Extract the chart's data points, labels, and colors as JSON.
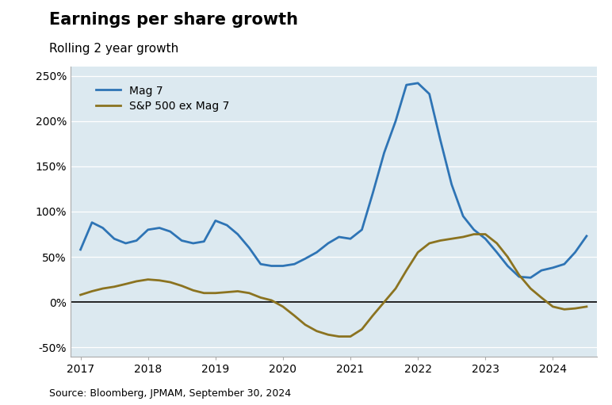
{
  "title": "Earnings per share growth",
  "subtitle": "Rolling 2 year growth",
  "source": "Source: Bloomberg, JPMAM, September 30, 2024",
  "plot_bg_color": "#dce9f0",
  "outer_bg_color": "#ffffff",
  "mag7_color": "#2e74b5",
  "sp500_color": "#8b7320",
  "mag7_label": "Mag 7",
  "sp500_label": "S&P 500 ex Mag 7",
  "ylim": [
    -60,
    260
  ],
  "yticks": [
    -50,
    0,
    50,
    100,
    150,
    200,
    250
  ],
  "mag7_x": [
    2017.0,
    2017.17,
    2017.33,
    2017.5,
    2017.67,
    2017.83,
    2018.0,
    2018.17,
    2018.33,
    2018.5,
    2018.67,
    2018.83,
    2019.0,
    2019.17,
    2019.33,
    2019.5,
    2019.67,
    2019.83,
    2020.0,
    2020.17,
    2020.33,
    2020.5,
    2020.67,
    2020.83,
    2021.0,
    2021.17,
    2021.33,
    2021.5,
    2021.67,
    2021.83,
    2022.0,
    2022.17,
    2022.33,
    2022.5,
    2022.67,
    2022.83,
    2023.0,
    2023.17,
    2023.33,
    2023.5,
    2023.67,
    2023.83,
    2024.0,
    2024.17,
    2024.33,
    2024.5
  ],
  "mag7_y": [
    58,
    88,
    82,
    70,
    65,
    68,
    80,
    82,
    78,
    68,
    65,
    67,
    90,
    85,
    75,
    60,
    42,
    40,
    40,
    42,
    48,
    55,
    65,
    72,
    70,
    80,
    120,
    165,
    200,
    240,
    242,
    230,
    180,
    130,
    95,
    80,
    70,
    55,
    40,
    28,
    27,
    35,
    38,
    42,
    55,
    73
  ],
  "sp500_x": [
    2017.0,
    2017.17,
    2017.33,
    2017.5,
    2017.67,
    2017.83,
    2018.0,
    2018.17,
    2018.33,
    2018.5,
    2018.67,
    2018.83,
    2019.0,
    2019.17,
    2019.33,
    2019.5,
    2019.67,
    2019.83,
    2020.0,
    2020.17,
    2020.33,
    2020.5,
    2020.67,
    2020.83,
    2021.0,
    2021.17,
    2021.33,
    2021.5,
    2021.67,
    2021.83,
    2022.0,
    2022.17,
    2022.33,
    2022.5,
    2022.67,
    2022.83,
    2023.0,
    2023.17,
    2023.33,
    2023.5,
    2023.67,
    2023.83,
    2024.0,
    2024.17,
    2024.33,
    2024.5
  ],
  "sp500_y": [
    8,
    12,
    15,
    17,
    20,
    23,
    25,
    24,
    22,
    18,
    13,
    10,
    10,
    11,
    12,
    10,
    5,
    2,
    -5,
    -15,
    -25,
    -32,
    -36,
    -38,
    -38,
    -30,
    -15,
    0,
    15,
    35,
    55,
    65,
    68,
    70,
    72,
    75,
    75,
    65,
    50,
    30,
    15,
    5,
    -5,
    -8,
    -7,
    -5
  ],
  "xticks": [
    2017,
    2018,
    2019,
    2020,
    2021,
    2022,
    2023,
    2024
  ],
  "xlim": [
    2016.85,
    2024.65
  ],
  "line_width": 2.0,
  "title_fontsize": 15,
  "subtitle_fontsize": 11,
  "tick_fontsize": 10,
  "source_fontsize": 9,
  "legend_fontsize": 10
}
